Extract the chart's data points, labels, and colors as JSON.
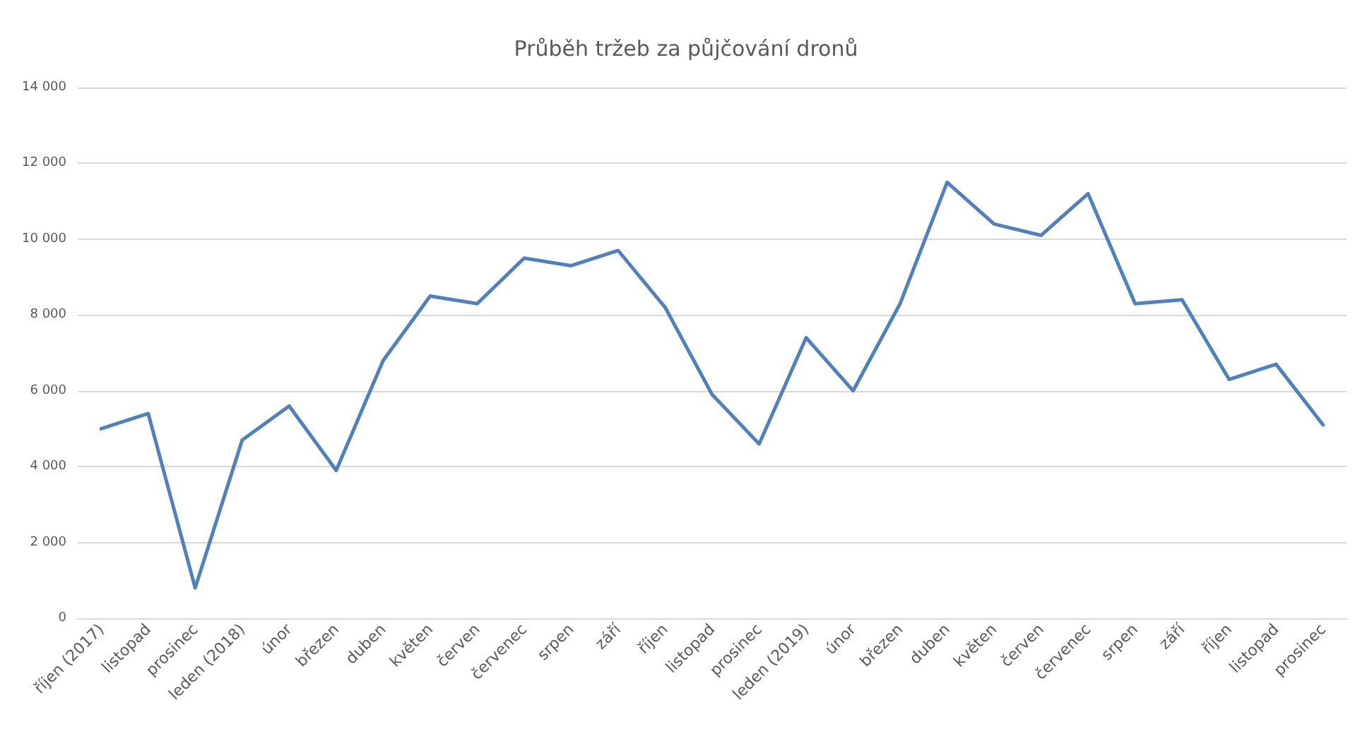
{
  "chart_data": {
    "type": "line",
    "title": "Průběh tržeb za půjčování dronů",
    "categories": [
      "říjen (2017)",
      "listopad",
      "prosinec",
      "leden (2018)",
      "únor",
      "březen",
      "duben",
      "květen",
      "červen",
      "červenec",
      "srpen",
      "září",
      "říjen",
      "listopad",
      "prosinec",
      "leden (2019)",
      "únor",
      "březen",
      "duben",
      "květen",
      "červen",
      "červenec",
      "srpen",
      "září",
      "říjen",
      "listopad",
      "prosinec"
    ],
    "series": [
      {
        "color": "#4f81bd",
        "values": [
          5000,
          5400,
          800,
          4700,
          5600,
          3900,
          6800,
          8500,
          8300,
          9500,
          9300,
          9700,
          8200,
          5900,
          4600,
          7400,
          6000,
          8300,
          11500,
          10400,
          10100,
          11200,
          8300,
          8400,
          6300,
          6700,
          5100
        ]
      }
    ],
    "ylim": [
      0,
      14000
    ],
    "yticks": [
      0,
      {
        "value": 2000,
        "label": "2 000"
      },
      {
        "value": 4000,
        "label": "4 000"
      },
      {
        "value": 6000,
        "label": "6 000"
      },
      {
        "value": 8000,
        "label": "8 000"
      },
      {
        "value": 10000,
        "label": "10 000"
      },
      {
        "value": 12000,
        "label": "12 000"
      },
      {
        "value": 14000,
        "label": "14 000"
      }
    ],
    "grid": "y",
    "marker": "none",
    "line_style": "solid"
  }
}
